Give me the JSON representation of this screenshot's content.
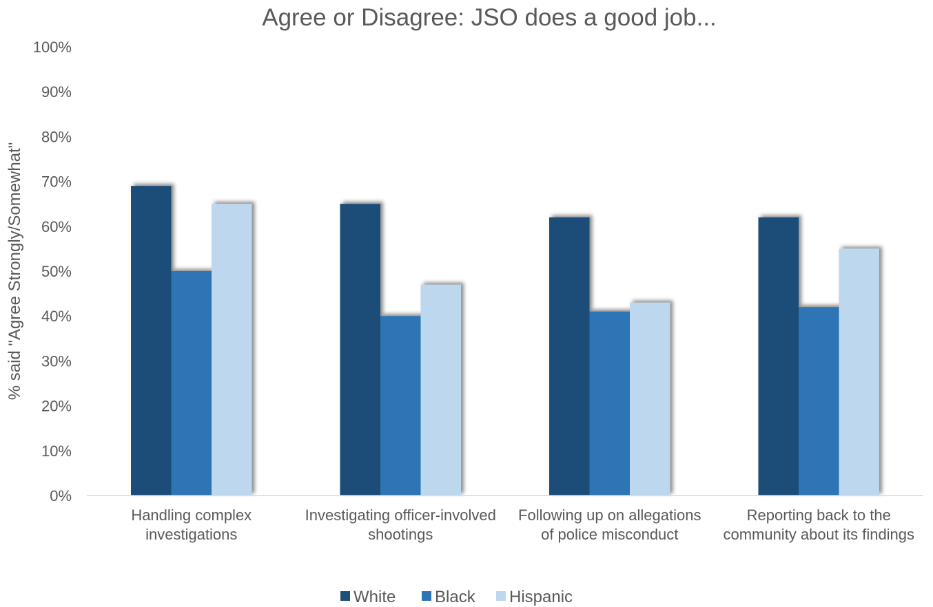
{
  "chart_data": {
    "type": "bar",
    "title": "Agree or Disagree: JSO does a good job...",
    "ylabel": "% said \"Agree Strongly/Somewhat\"",
    "xlabel": "",
    "ylim": [
      0,
      100
    ],
    "yticks": [
      "0%",
      "10%",
      "20%",
      "30%",
      "40%",
      "50%",
      "60%",
      "70%",
      "80%",
      "90%",
      "100%"
    ],
    "categories": [
      [
        "Handling complex",
        "investigations"
      ],
      [
        "Investigating officer-involved",
        "shootings"
      ],
      [
        "Following up on allegations",
        "of police misconduct"
      ],
      [
        "Reporting back to the",
        "community about its findings"
      ]
    ],
    "series": [
      {
        "name": "White",
        "color": "#1f4e79",
        "values": [
          69,
          65,
          62,
          62
        ]
      },
      {
        "name": "Black",
        "color": "#2e75b6",
        "values": [
          50,
          40,
          41,
          42
        ]
      },
      {
        "name": "Hispanic",
        "color": "#bdd7ee",
        "values": [
          65,
          47,
          43,
          55
        ]
      }
    ],
    "grid": false,
    "legend_position": "bottom"
  }
}
